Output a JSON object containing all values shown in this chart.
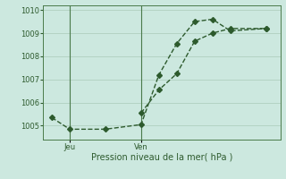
{
  "xlabel": "Pression niveau de la mer( hPa )",
  "background_color": "#cce8df",
  "plot_bg_color": "#cce8df",
  "line_color": "#2d5a2d",
  "grid_color": "#b0cfbf",
  "axis_color": "#4a7a4a",
  "ylim": [
    1004.4,
    1010.2
  ],
  "yticks": [
    1005,
    1006,
    1007,
    1008,
    1009,
    1010
  ],
  "series1_x": [
    0,
    1,
    3,
    5,
    6,
    7,
    8,
    9,
    10,
    12
  ],
  "series1_y": [
    1005.35,
    1004.85,
    1004.85,
    1005.05,
    1007.2,
    1008.55,
    1009.5,
    1009.6,
    1009.1,
    1009.2
  ],
  "series2_x": [
    5,
    6,
    7,
    8,
    9,
    10,
    12
  ],
  "series2_y": [
    1005.55,
    1006.55,
    1007.25,
    1008.65,
    1009.0,
    1009.2,
    1009.2
  ],
  "markersize": 3,
  "linewidth": 1.0,
  "xtick_positions": [
    1,
    5
  ],
  "xtick_labels": [
    "Jeu",
    "Ven"
  ],
  "vline_x": [
    1,
    5
  ],
  "xlim": [
    -0.5,
    12.8
  ]
}
